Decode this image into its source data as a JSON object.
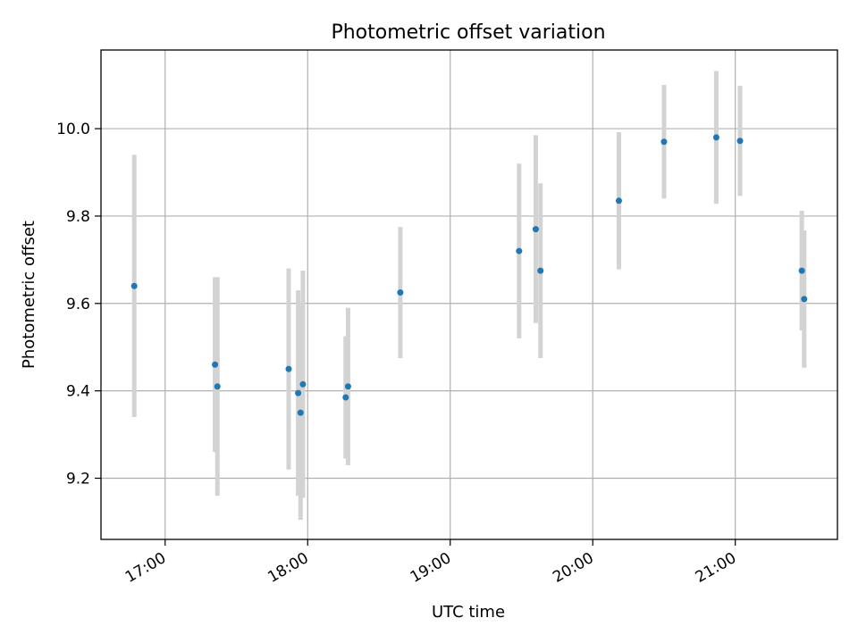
{
  "chart_data": {
    "type": "scatter",
    "title": "Photometric offset variation",
    "xlabel": "UTC time",
    "ylabel": "Photometric offset",
    "x_ticks": [
      "17:00",
      "18:00",
      "19:00",
      "20:00",
      "21:00"
    ],
    "y_ticks": [
      "9.2",
      "9.4",
      "9.6",
      "9.8",
      "10.0"
    ],
    "xlim": [
      "16:33",
      "21:43"
    ],
    "ylim": [
      9.06,
      10.18
    ],
    "grid": true,
    "legend": "none",
    "series": [
      {
        "points": [
          {
            "t": "16:47",
            "y": 9.64,
            "err": 0.3
          },
          {
            "t": "17:21",
            "y": 9.46,
            "err": 0.2
          },
          {
            "t": "17:22",
            "y": 9.41,
            "err": 0.25
          },
          {
            "t": "17:52",
            "y": 9.45,
            "err": 0.23
          },
          {
            "t": "17:56",
            "y": 9.395,
            "err": 0.235
          },
          {
            "t": "17:57",
            "y": 9.35,
            "err": 0.245
          },
          {
            "t": "17:58",
            "y": 9.415,
            "err": 0.26
          },
          {
            "t": "18:16",
            "y": 9.385,
            "err": 0.14
          },
          {
            "t": "18:17",
            "y": 9.41,
            "err": 0.18
          },
          {
            "t": "18:39",
            "y": 9.625,
            "err": 0.15
          },
          {
            "t": "19:29",
            "y": 9.72,
            "err": 0.2
          },
          {
            "t": "19:36",
            "y": 9.77,
            "err": 0.215
          },
          {
            "t": "19:38",
            "y": 9.675,
            "err": 0.2
          },
          {
            "t": "20:11",
            "y": 9.835,
            "err": 0.157
          },
          {
            "t": "20:30",
            "y": 9.97,
            "err": 0.13
          },
          {
            "t": "20:52",
            "y": 9.98,
            "err": 0.152
          },
          {
            "t": "21:02",
            "y": 9.972,
            "err": 0.126
          },
          {
            "t": "21:28",
            "y": 9.675,
            "err": 0.137
          },
          {
            "t": "21:29",
            "y": 9.61,
            "err": 0.157
          }
        ]
      }
    ],
    "colors": {
      "point": "#1f77b4",
      "errorbar": "#d3d3d3",
      "grid": "#b0b0b0",
      "axis": "#000000"
    }
  }
}
